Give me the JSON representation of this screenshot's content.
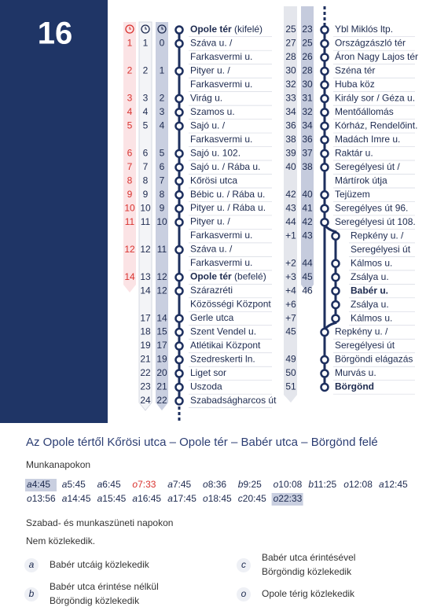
{
  "route_number": "16",
  "left_table": {
    "rows": [
      {
        "name": "Opole tér",
        "suffix": "(kifelé)",
        "bold": true
      },
      {
        "t1": "1",
        "t2": "1",
        "t3": "0",
        "name": "Száva u. /"
      },
      {
        "name": "Farkasvermi u."
      },
      {
        "t1": "2",
        "t2": "2",
        "t3": "1",
        "name": "Pityer u. /"
      },
      {
        "name": "Farkasvermi u."
      },
      {
        "t1": "3",
        "t2": "3",
        "t3": "2",
        "name": "Virág u."
      },
      {
        "t1": "4",
        "t2": "4",
        "t3": "3",
        "name": "Szamos u."
      },
      {
        "t1": "5",
        "t2": "5",
        "t3": "4",
        "name": "Sajó u. /"
      },
      {
        "name": "Farkasvermi u."
      },
      {
        "t1": "6",
        "t2": "6",
        "t3": "5",
        "name": "Sajó u. 102."
      },
      {
        "t1": "7",
        "t2": "7",
        "t3": "6",
        "name": "Sajó u. / Rába u."
      },
      {
        "t1": "8",
        "t2": "8",
        "t3": "7",
        "name": "Kőrösi utca"
      },
      {
        "t1": "9",
        "t2": "9",
        "t3": "8",
        "name": "Bébic u. / Rába u."
      },
      {
        "t1": "10",
        "t2": "10",
        "t3": "9",
        "name": "Pityer u. / Rába u."
      },
      {
        "t1": "11",
        "t2": "11",
        "t3": "10",
        "name": "Pityer u. /"
      },
      {
        "name": "Farkasvermi u."
      },
      {
        "t1": "12",
        "t2": "12",
        "t3": "11",
        "name": "Száva u. /"
      },
      {
        "name": "Farkasvermi u."
      },
      {
        "t1": "14",
        "t2": "13",
        "t3": "12",
        "name": "Opole tér",
        "suffix": "(befelé)",
        "bold": true
      },
      {
        "t2": "14",
        "t3": "12",
        "name": "Szárazréti"
      },
      {
        "name": "Közösségi Központ"
      },
      {
        "t2": "17",
        "t3": "14",
        "name": "Gerle utca"
      },
      {
        "t2": "18",
        "t3": "15",
        "name": "Szent Vendel u."
      },
      {
        "t2": "19",
        "t3": "17",
        "name": "Atlétikai Központ"
      },
      {
        "t2": "21",
        "t3": "19",
        "name": "Szedreskerti ln."
      },
      {
        "t2": "22",
        "t3": "20",
        "name": "Liget sor"
      },
      {
        "t2": "23",
        "t3": "21",
        "name": "Uszoda"
      },
      {
        "t2": "24",
        "t3": "22",
        "name": "Szabadságharcos út"
      }
    ]
  },
  "right_table": {
    "rows": [
      {
        "ta": "25",
        "tb": "23",
        "name": "Ybl Miklós ltp."
      },
      {
        "ta": "27",
        "tb": "25",
        "name": "Országzászló tér"
      },
      {
        "ta": "28",
        "tb": "26",
        "name": "Áron Nagy Lajos tér"
      },
      {
        "ta": "30",
        "tb": "28",
        "name": "Széna tér"
      },
      {
        "ta": "32",
        "tb": "30",
        "name": "Huba köz"
      },
      {
        "ta": "33",
        "tb": "31",
        "name": "Király sor / Géza u."
      },
      {
        "ta": "34",
        "tb": "32",
        "name": "Mentőállomás"
      },
      {
        "ta": "36",
        "tb": "34",
        "name": "Kórház, Rendelőint."
      },
      {
        "ta": "38",
        "tb": "36",
        "name": "Madách Imre u."
      },
      {
        "ta": "39",
        "tb": "37",
        "name": "Raktár u."
      },
      {
        "ta": "40",
        "tb": "38",
        "name": "Seregélyesi út /"
      },
      {
        "name": "Mártírok útja"
      },
      {
        "ta": "42",
        "tb": "40",
        "name": "Tejüzem"
      },
      {
        "ta": "43",
        "tb": "41",
        "name": "Seregélyes út 96."
      },
      {
        "ta": "44",
        "tb": "42",
        "name": "Seregélyesi út 108."
      },
      {
        "ta": "+1",
        "tb": "43",
        "name": "Repkény u. /",
        "branch": true
      },
      {
        "name": "Seregélyesi út",
        "branch": true
      },
      {
        "ta": "+2",
        "tb": "44",
        "name": "Kálmos u.",
        "branch": true
      },
      {
        "ta": "+3",
        "tb": "45",
        "name": "Zsálya u.",
        "branch": true
      },
      {
        "ta": "+4",
        "tb": "46",
        "name": "Babér u.",
        "branch": true,
        "bold": true
      },
      {
        "ta": "+6",
        "name": "Zsálya u.",
        "branch": true
      },
      {
        "ta": "+7",
        "name": "Kálmos u.",
        "branch": true
      },
      {
        "ta": "45",
        "name": "Repkény u. /"
      },
      {
        "name": "Seregélyesi út"
      },
      {
        "ta": "49",
        "name": "Börgöndi elágazás"
      },
      {
        "ta": "50",
        "name": "Murvás u."
      },
      {
        "ta": "51",
        "name": "Börgönd",
        "bold": true
      }
    ]
  },
  "schedule": {
    "heading": "Az Opole tértől Kőrösi utca – Opole tér – Babér utca – Börgönd felé",
    "weekday_label": "Munkanapokon",
    "weekday_departures": [
      [
        {
          "prefix": "a",
          "time": "4:45",
          "style": "highlight"
        },
        {
          "prefix": "a",
          "time": "5:45"
        },
        {
          "prefix": "a",
          "time": "6:45"
        },
        {
          "prefix": "o",
          "time": "7:33",
          "style": "red"
        },
        {
          "prefix": "a",
          "time": "7:45"
        },
        {
          "prefix": "o",
          "time": "8:36"
        },
        {
          "prefix": "b",
          "time": "9:25"
        },
        {
          "prefix": "o",
          "time": "10:08"
        },
        {
          "prefix": "b",
          "time": "11:25"
        },
        {
          "prefix": "o",
          "time": "12:08"
        },
        {
          "prefix": "a",
          "time": "12:45"
        }
      ],
      [
        {
          "prefix": "o",
          "time": "13:56"
        },
        {
          "prefix": "a",
          "time": "14:45"
        },
        {
          "prefix": "a",
          "time": "15:45"
        },
        {
          "prefix": "a",
          "time": "16:45"
        },
        {
          "prefix": "a",
          "time": "17:45"
        },
        {
          "prefix": "o",
          "time": "18:45"
        },
        {
          "prefix": "c",
          "time": "20:45"
        },
        {
          "prefix": "o",
          "time": "22:33",
          "style": "highlight"
        }
      ]
    ],
    "holiday_label": "Szabad- és munkaszüneti napokon",
    "holiday_note": "Nem közlekedik."
  },
  "legend": [
    {
      "key": "a",
      "lines": [
        "Babér utcáig közlekedik"
      ]
    },
    {
      "key": "b",
      "lines": [
        "Babér utca érintése nélkül",
        "Börgöndig közlekedik"
      ]
    },
    {
      "key": "c",
      "lines": [
        "Babér utca érintésével",
        "Börgöndig közlekedik"
      ]
    },
    {
      "key": "o",
      "lines": [
        "Opole térig közlekedik"
      ]
    }
  ]
}
